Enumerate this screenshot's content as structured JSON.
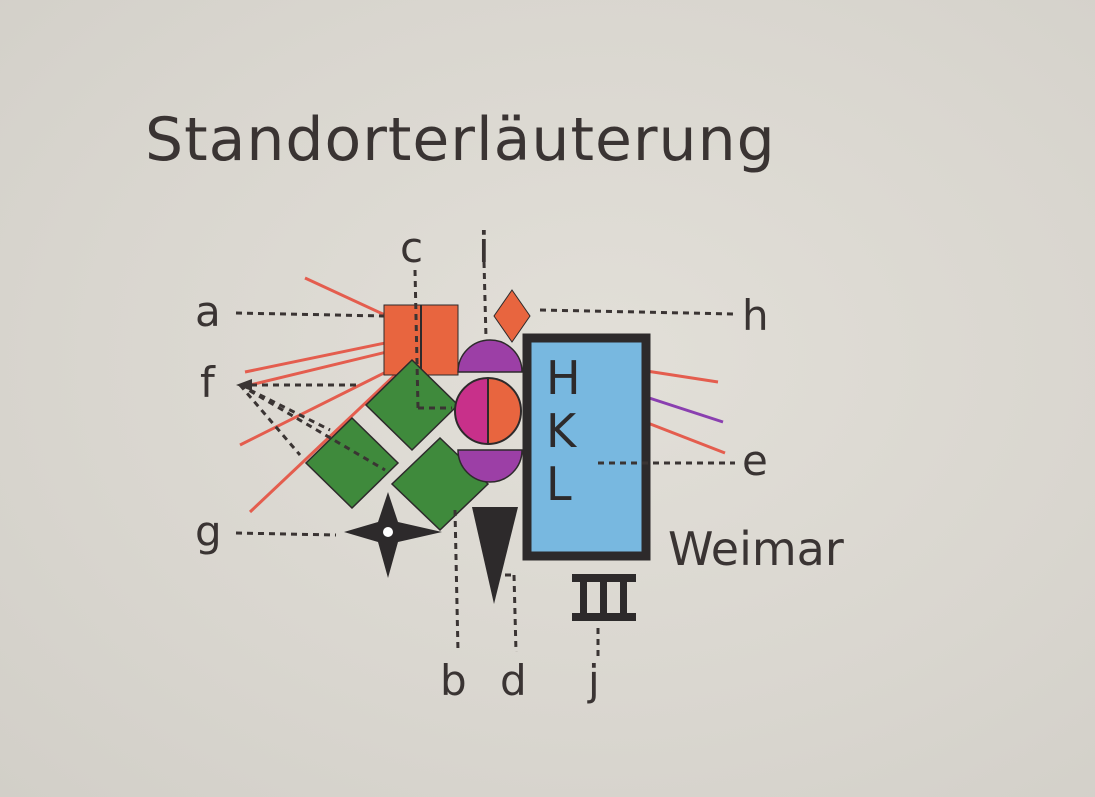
{
  "title": "Standorterläuterung",
  "labels": {
    "a": "a",
    "b": "b",
    "c": "c",
    "d": "d",
    "e": "e",
    "f": "f",
    "g": "g",
    "h": "h",
    "i": "i",
    "j": "j"
  },
  "box_letters": [
    "H",
    "K",
    "L"
  ],
  "city": "Weimar",
  "numeral": "III",
  "colors": {
    "orange": "#e8653f",
    "green": "#3f8a3c",
    "blue": "#78b8e0",
    "purple": "#9c3fa6",
    "magenta": "#c8308a",
    "ray_red": "#e45d4e",
    "ray_purple": "#8a3fb0",
    "ink": "#2d2a2b"
  }
}
